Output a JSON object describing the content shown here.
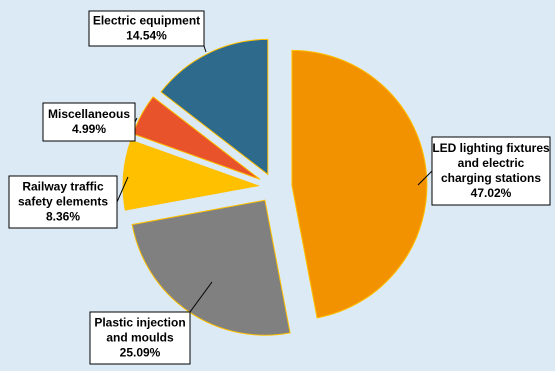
{
  "chart_data": {
    "type": "pie",
    "exploded": true,
    "slices": [
      {
        "label": [
          "LED lighting fixtures",
          "and electric",
          "charging stations"
        ],
        "value_label": "47.02%",
        "value": 47.02,
        "color": "#f39200"
      },
      {
        "label": [
          "Plastic injection",
          "and moulds"
        ],
        "value_label": "25.09%",
        "value": 25.09,
        "color": "#808080"
      },
      {
        "label": [
          "Railway traffic",
          "safety elements"
        ],
        "value_label": "8.36%",
        "value": 8.36,
        "color": "#ffc000"
      },
      {
        "label": [
          "Miscellaneous"
        ],
        "value_label": "4.99%",
        "value": 4.99,
        "color": "#e8532b"
      },
      {
        "label": [
          "Electric equipment"
        ],
        "value_label": "14.54%",
        "value": 14.54,
        "color": "#2e6a8c"
      }
    ]
  }
}
